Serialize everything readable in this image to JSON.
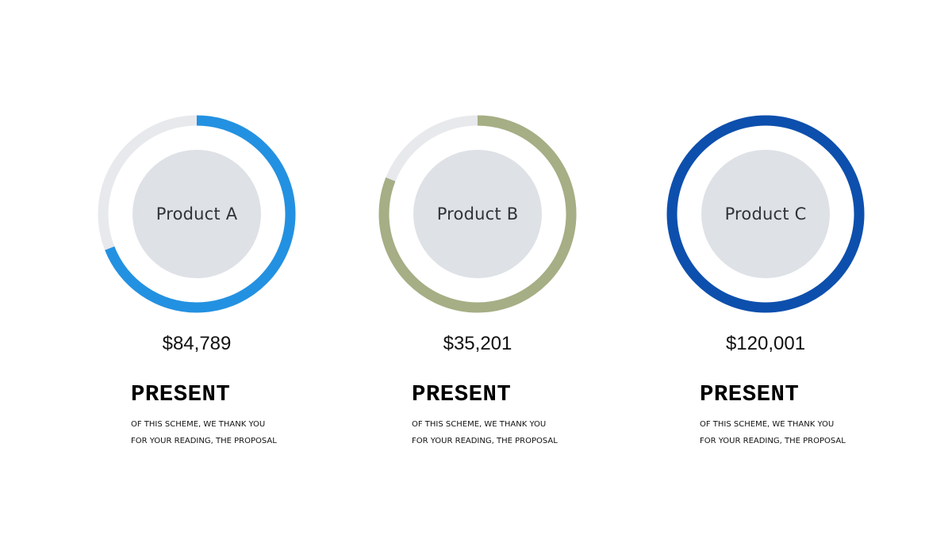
{
  "chart_data": {
    "type": "pie",
    "track_color": "#E7E9EC",
    "inner_color": "#DEE1E6",
    "charts": [
      {
        "label": "Product A",
        "amount": "$84,789",
        "fraction": 0.69,
        "color": "#2391E1",
        "heading": "PRESENT",
        "desc_lines": [
          "OF THIS SCHEME, WE THANK YOU",
          "FOR YOUR READING, THE PROPOSAL"
        ]
      },
      {
        "label": "Product B",
        "amount": "$35,201",
        "fraction": 0.81,
        "color": "#A5AE84",
        "heading": "PRESENT",
        "desc_lines": [
          "OF THIS SCHEME, WE THANK YOU",
          "FOR YOUR READING, THE PROPOSAL"
        ]
      },
      {
        "label": "Product C",
        "amount": "$120,001",
        "fraction": 1.0,
        "color": "#0D4FAD",
        "heading": "PRESENT",
        "desc_lines": [
          "OF THIS SCHEME, WE THANK YOU",
          "FOR YOUR READING, THE PROPOSAL"
        ]
      }
    ]
  }
}
